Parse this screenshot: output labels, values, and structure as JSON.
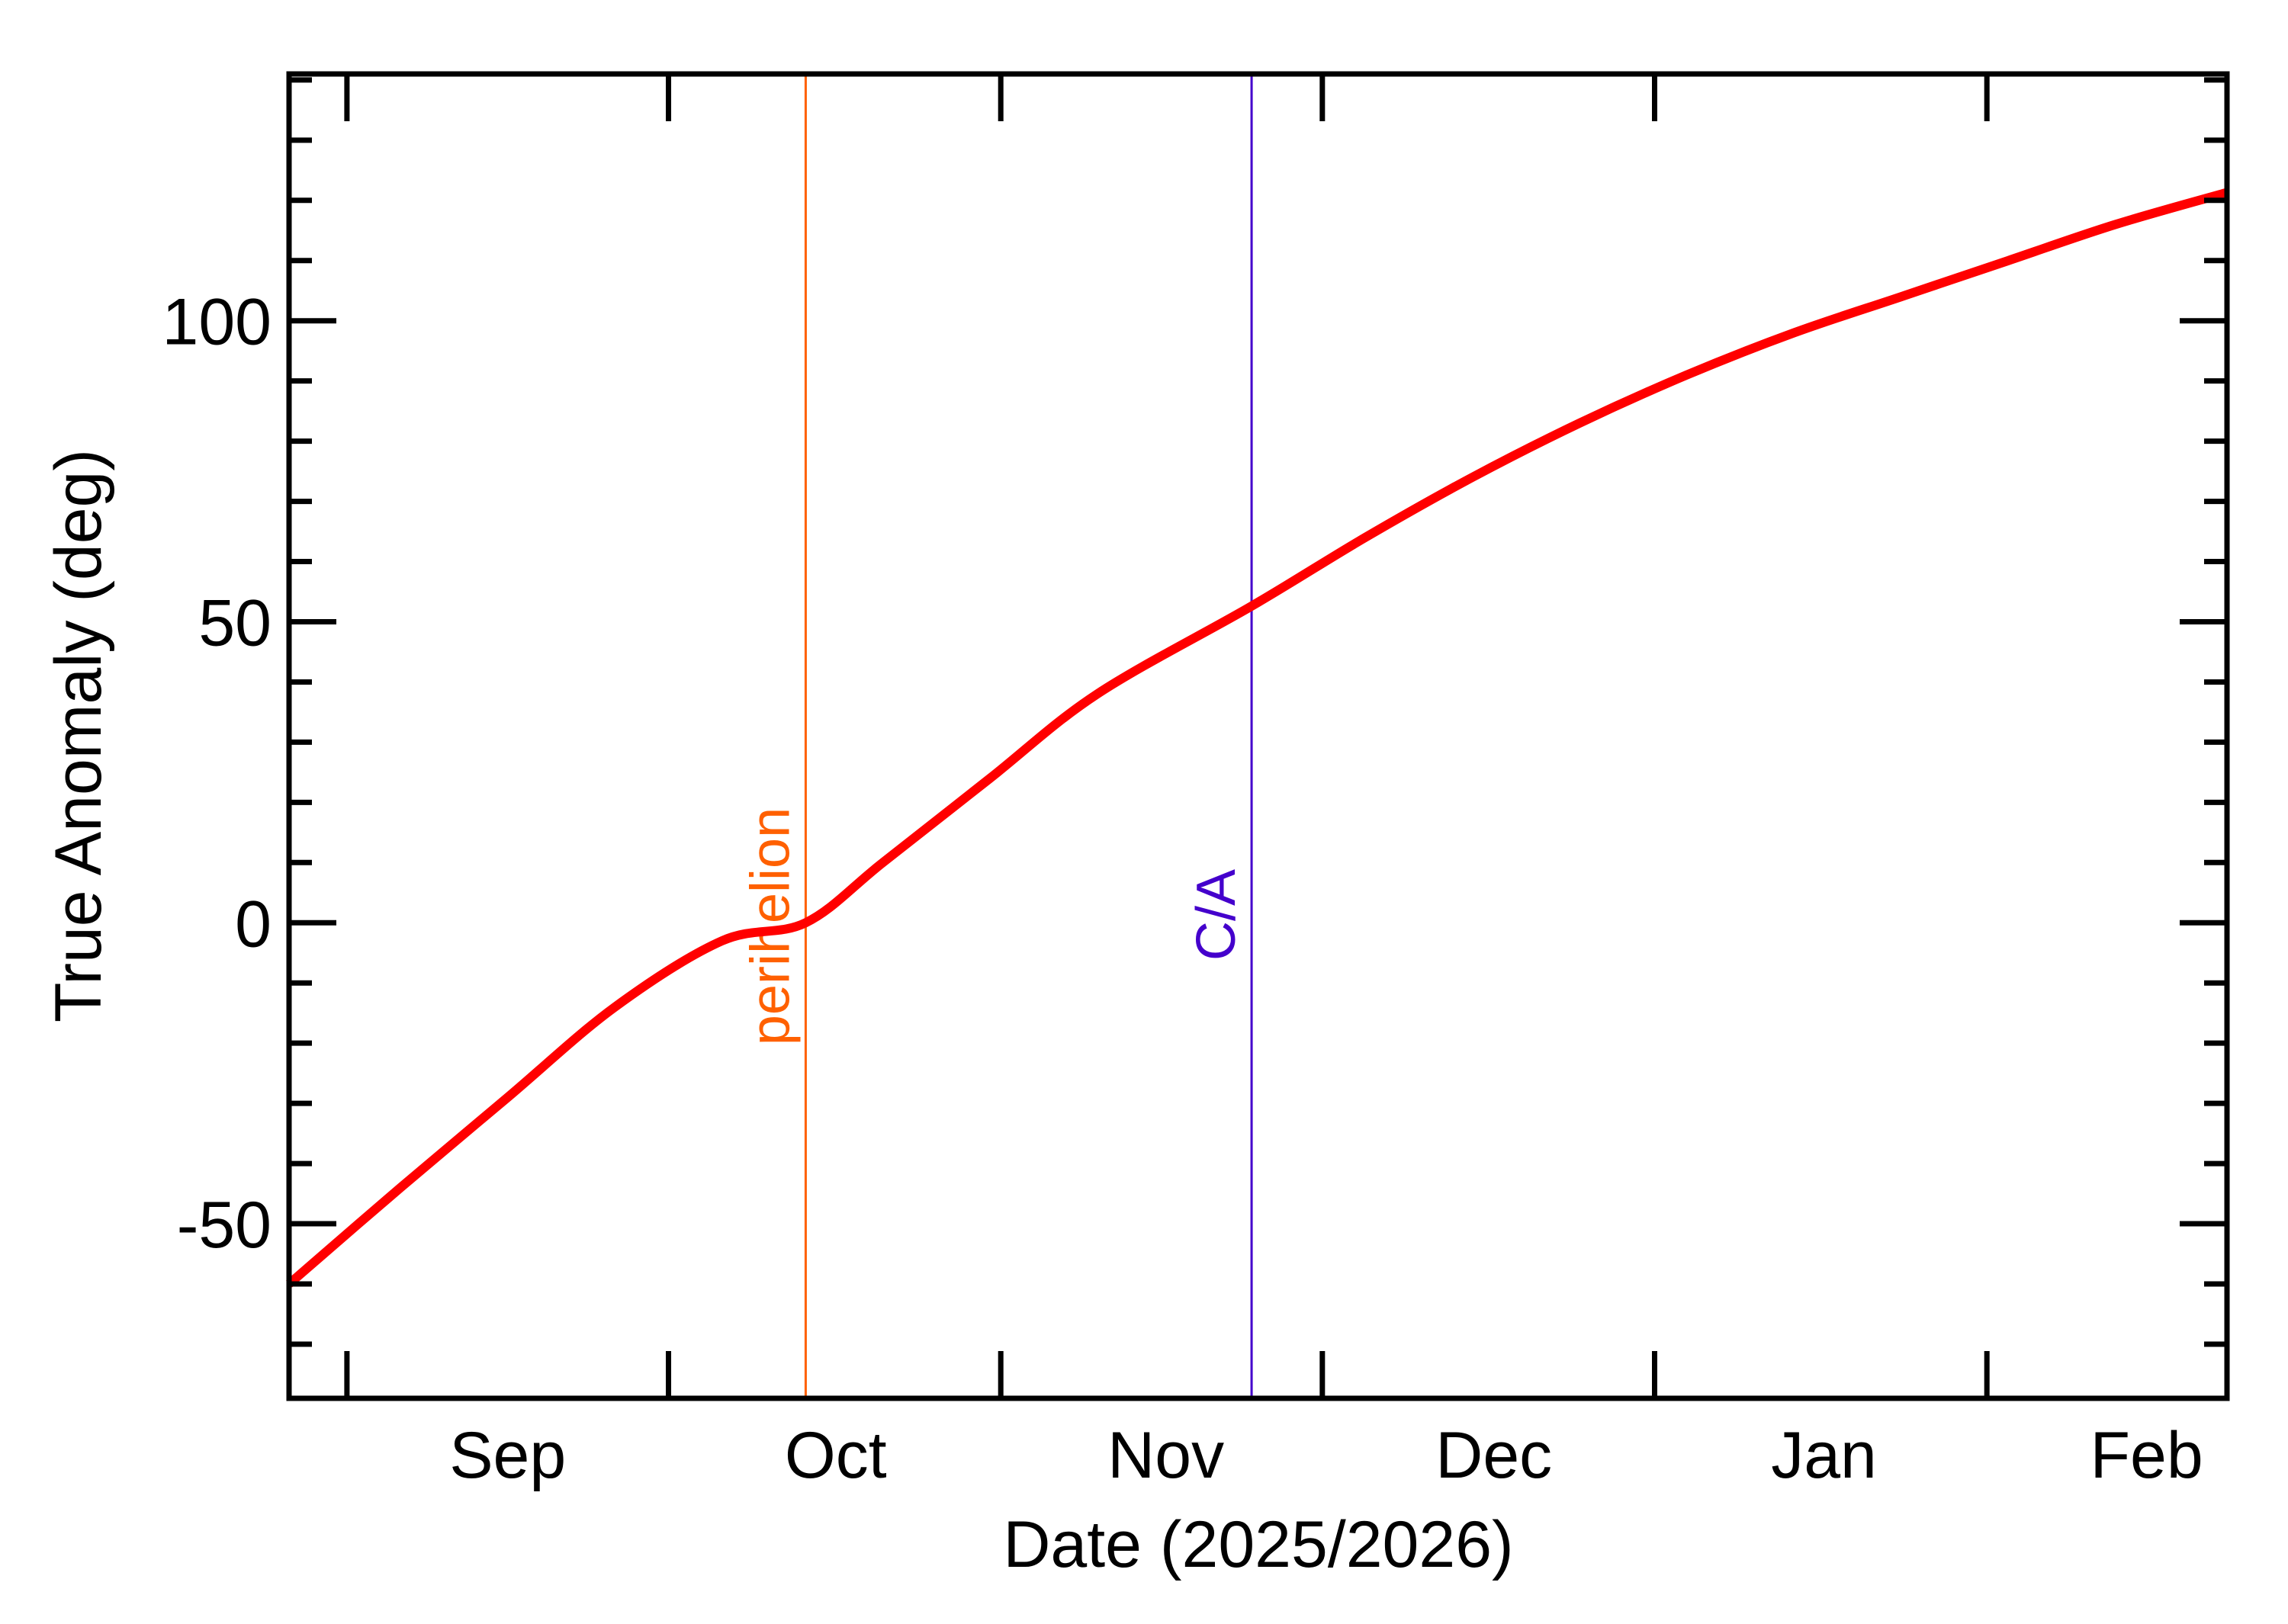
{
  "chart_data": {
    "type": "line",
    "title": "",
    "xlabel": "Date (2025/2026)",
    "ylabel": "True Anomaly (deg)",
    "x_unit": "days since 2025-09-01",
    "xlim": [
      -5.4,
      175.4
    ],
    "ylim": [
      -79,
      141
    ],
    "grid": false,
    "legend": null,
    "x_ticks": [
      {
        "day": 0,
        "date": "2025-09-01"
      },
      {
        "day": 30,
        "date": "2025-10-01"
      },
      {
        "day": 61,
        "date": "2025-11-01"
      },
      {
        "day": 91,
        "date": "2025-12-01"
      },
      {
        "day": 122,
        "date": "2026-01-01"
      },
      {
        "day": 153,
        "date": "2026-02-01"
      }
    ],
    "x_tick_labels": [
      {
        "label": "Sep",
        "day": 15
      },
      {
        "label": "Oct",
        "day": 45.6
      },
      {
        "label": "Nov",
        "day": 76.4
      },
      {
        "label": "Dec",
        "day": 107
      },
      {
        "label": "Jan",
        "day": 137.8
      },
      {
        "label": "Feb",
        "day": 167.9
      }
    ],
    "y_major_ticks": [
      -50,
      0,
      50,
      100
    ],
    "y_tick_labels": [
      "-50",
      "0",
      "50",
      "100"
    ],
    "y_minor_step": 10,
    "series": [
      {
        "name": "True Anomaly",
        "color": "#FF0000",
        "x": [
          -5.4,
          5,
          15,
          25,
          35,
          42.8,
          50,
          60,
          70,
          84.4,
          95,
          105,
          115,
          125,
          135,
          145,
          155,
          165,
          175.4
        ],
        "y": [
          -60,
          -44,
          -29,
          -14,
          -3,
          0,
          10,
          24,
          38,
          52.6,
          64,
          74,
          83,
          91,
          98,
          104,
          110,
          116,
          121.3
        ]
      }
    ],
    "annotations": [
      {
        "label": "perihelion",
        "day": 42.8,
        "date": "2025-10-13",
        "color": "#FF6000",
        "orientation": "vertical-line"
      },
      {
        "label": "C/A",
        "day": 84.4,
        "date": "2025-11-23",
        "color": "#4400CC",
        "orientation": "vertical-line"
      }
    ]
  }
}
